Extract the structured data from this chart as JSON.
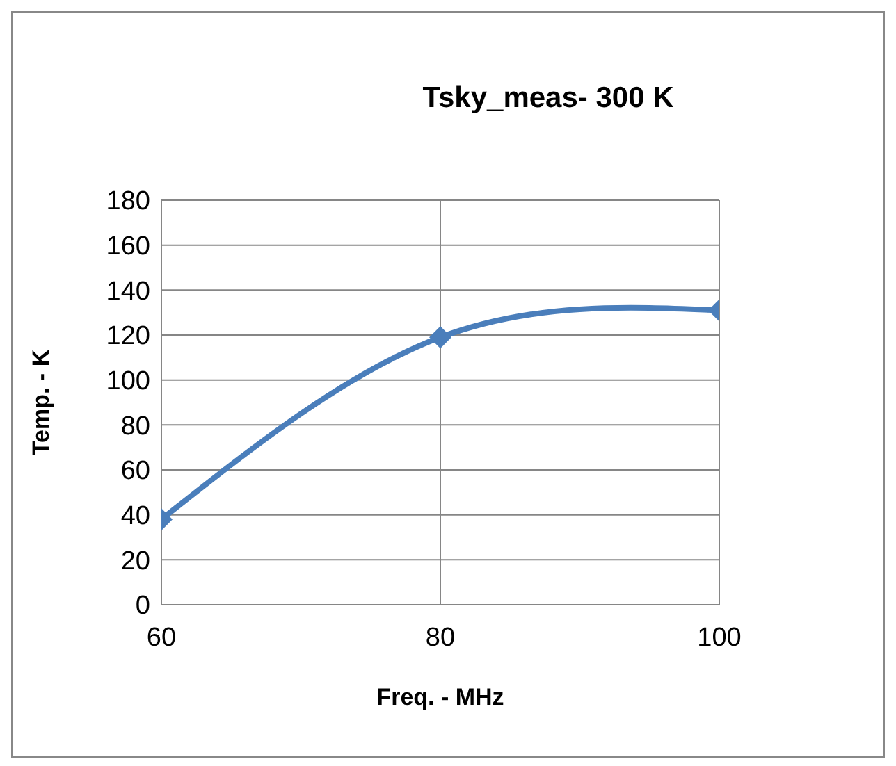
{
  "chart_data": {
    "type": "line",
    "title": "Tsky_meas- 300 K",
    "xlabel": "Freq.  - MHz",
    "ylabel": "Temp. - K",
    "x": [
      60,
      80,
      100
    ],
    "series": [
      {
        "color": "#4a7ebb",
        "values": [
          38,
          119,
          131
        ]
      }
    ],
    "xlim": [
      60,
      100
    ],
    "xticks": [
      60,
      80,
      100
    ],
    "ylim": [
      0,
      180
    ],
    "yticks": [
      0,
      20,
      40,
      60,
      80,
      100,
      120,
      140,
      160,
      180
    ],
    "grid": true,
    "marker": "diamond",
    "line_style": "solid"
  }
}
